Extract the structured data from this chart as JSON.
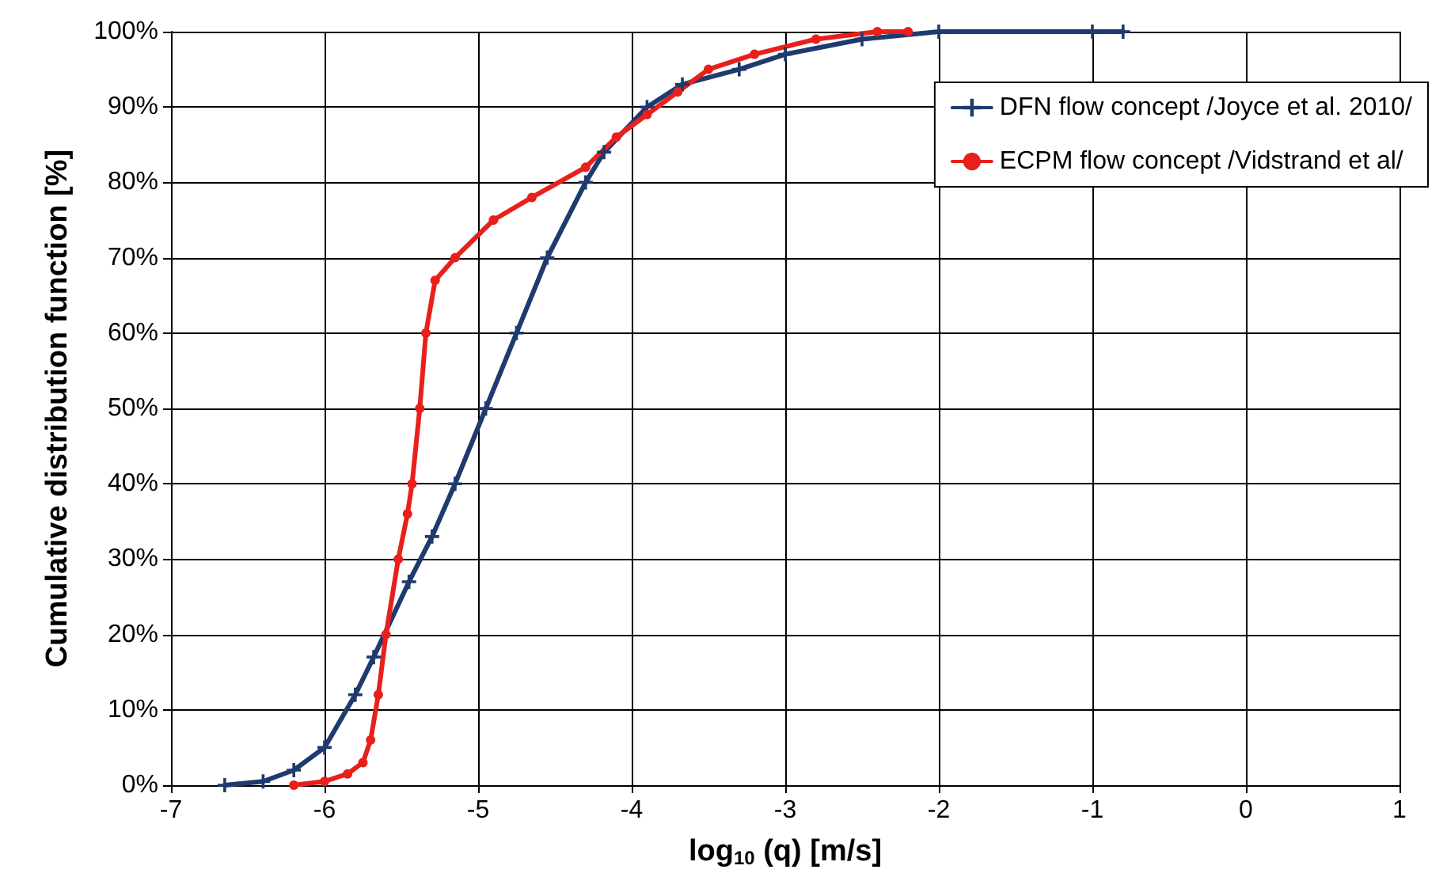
{
  "chart_data": {
    "type": "line",
    "xlabel": "log$_{10}$ (q) [m/s]",
    "ylabel": "Cumulative distribution function [%]",
    "xlim": [
      -7,
      1
    ],
    "xticks": [
      -7,
      -6,
      -5,
      -4,
      -3,
      -2,
      -1,
      0,
      1
    ],
    "ylim": [
      0,
      100
    ],
    "yticks": [
      {
        "value": 0,
        "label": "0%"
      },
      {
        "value": 10,
        "label": "10%"
      },
      {
        "value": 20,
        "label": "20%"
      },
      {
        "value": 30,
        "label": "30%"
      },
      {
        "value": 40,
        "label": "40%"
      },
      {
        "value": 50,
        "label": "50%"
      },
      {
        "value": 60,
        "label": "60%"
      },
      {
        "value": 70,
        "label": "70%"
      },
      {
        "value": 80,
        "label": "80%"
      },
      {
        "value": 90,
        "label": "90%"
      },
      {
        "value": 100,
        "label": "100%"
      }
    ],
    "grid": true,
    "legend": "top right",
    "line_style": "solid",
    "series": [
      {
        "name": "DFN flow concept /Joyce et al. 2010/",
        "color": "#1f3a6e",
        "marker": "cross",
        "x": [
          -6.65,
          -6.4,
          -6.2,
          -6.0,
          -5.8,
          -5.68,
          -5.45,
          -5.3,
          -5.15,
          -4.95,
          -4.75,
          -4.55,
          -4.3,
          -4.18,
          -3.9,
          -3.67,
          -3.3,
          -3.0,
          -2.5,
          -2.0,
          -1.0,
          -0.8
        ],
        "values": [
          0,
          0.5,
          2,
          5,
          12,
          17,
          27,
          33,
          40,
          50,
          60,
          70,
          80,
          84,
          90,
          93,
          95,
          97,
          99,
          100,
          100,
          100
        ]
      },
      {
        "name": "ECPM flow concept /Vidstrand et al/",
        "color": "#e8201c",
        "marker": "circle",
        "x": [
          -6.2,
          -6.0,
          -5.85,
          -5.75,
          -5.7,
          -5.65,
          -5.6,
          -5.52,
          -5.46,
          -5.43,
          -5.38,
          -5.34,
          -5.28,
          -5.15,
          -4.9,
          -4.65,
          -4.3,
          -4.1,
          -3.9,
          -3.7,
          -3.5,
          -3.2,
          -2.8,
          -2.4,
          -2.2
        ],
        "values": [
          0,
          0.5,
          1.5,
          3,
          6,
          12,
          20,
          30,
          36,
          40,
          50,
          60,
          67,
          70,
          75,
          78,
          82,
          86,
          89,
          92,
          95,
          97,
          99,
          100,
          100
        ]
      }
    ]
  }
}
